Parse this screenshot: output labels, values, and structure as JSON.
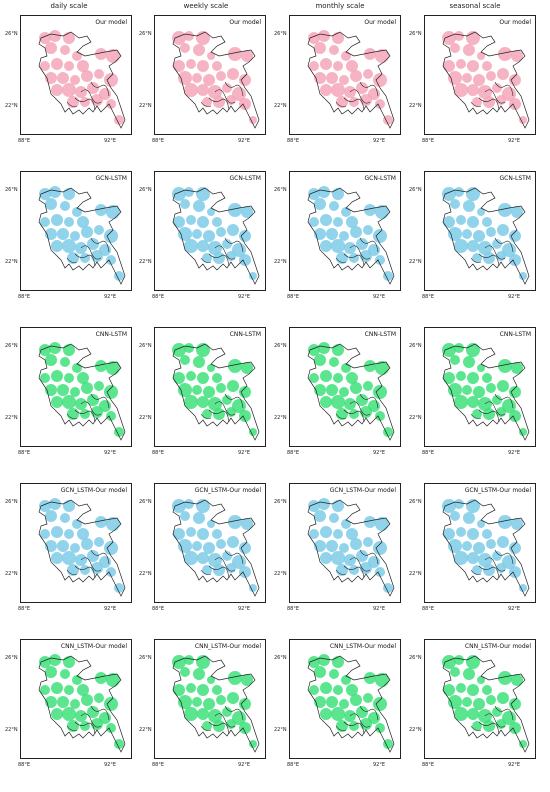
{
  "column_headers": [
    "daily scale",
    "weekly scale",
    "monthly scale",
    "seasonal scale"
  ],
  "rows": [
    {
      "model": "Our model",
      "color": "#f4a6b8"
    },
    {
      "model": "GCN-LSTM",
      "color": "#7ecbe6"
    },
    {
      "model": "CNN-LSTM",
      "color": "#3ee07a"
    },
    {
      "model": "GCN_LSTM-Our model",
      "color": "#7ecbe6"
    },
    {
      "model": "CNN_LSTM-Our model",
      "color": "#3ee07a"
    }
  ],
  "axis_labels": {
    "lat_top": "26°N",
    "lat_bottom": "22°N",
    "lon_left": "88°E",
    "lon_right": "92°E"
  },
  "map_outline_color": "#222222"
}
